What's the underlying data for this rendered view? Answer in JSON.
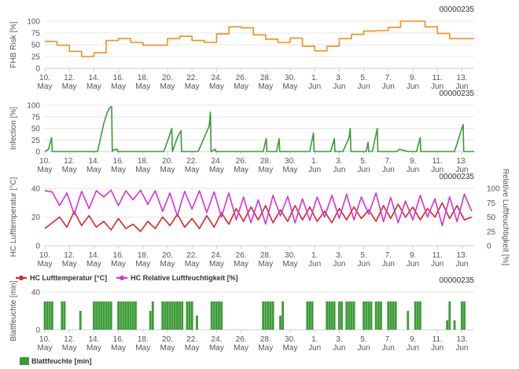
{
  "x_ticks": [
    "10. May",
    "12. May",
    "14. May",
    "16. May",
    "18. May",
    "20. May",
    "22. May",
    "24. May",
    "26. May",
    "28. May",
    "30. May",
    "1. Jun",
    "3. Jun",
    "5. Jun",
    "7. Jun",
    "9. Jun",
    "11. Jun",
    "13. Jun"
  ],
  "chart_data": [
    {
      "type": "line",
      "station_id": "00000235",
      "ylabel": "FHB Risk [%]",
      "ylim": [
        0,
        100
      ],
      "yticks": [
        "0",
        "25",
        "50",
        "75",
        "100"
      ],
      "color": "#f28f1c",
      "grid": true,
      "series": [
        {
          "x": [
            10,
            11,
            11,
            12,
            12,
            13,
            13,
            14,
            14,
            15,
            15,
            16,
            16,
            17,
            17,
            18,
            18,
            19,
            19,
            20,
            20,
            21,
            21,
            22,
            22,
            23,
            23,
            24,
            24,
            25,
            25,
            26,
            26,
            27,
            27,
            28,
            28,
            29,
            29,
            30,
            30,
            31,
            31,
            32,
            32,
            33,
            33,
            34,
            34,
            35,
            35,
            36,
            36,
            37,
            37,
            38,
            38,
            39,
            39,
            40,
            40,
            41,
            41,
            42,
            42,
            43,
            43,
            44,
            44,
            45
          ],
          "y": [
            57,
            57,
            49,
            49,
            36,
            36,
            25,
            25,
            33,
            33,
            59,
            59,
            63,
            63,
            55,
            55,
            49,
            49,
            49,
            49,
            63,
            63,
            68,
            68,
            59,
            59,
            55,
            55,
            73,
            73,
            88,
            88,
            86,
            86,
            71,
            71,
            62,
            62,
            55,
            55,
            64,
            64,
            47,
            47,
            37,
            37,
            47,
            47,
            63,
            63,
            72,
            72,
            79,
            79,
            80,
            80,
            87,
            87,
            100,
            100,
            100,
            100,
            88,
            88,
            74,
            74,
            63,
            63,
            63,
            63
          ]
        }
      ]
    },
    {
      "type": "line",
      "station_id": "00000235",
      "ylabel": "Infection [%]",
      "ylim": [
        0,
        100
      ],
      "yticks": [
        "0",
        "25",
        "50",
        "75",
        "100"
      ],
      "color": "#3a9b35",
      "grid": true,
      "series": [
        {
          "x": [
            10.0,
            10.3,
            10.55,
            10.6,
            14.3,
            14.8,
            15.1,
            15.3,
            15.45,
            15.5,
            15.55,
            15.9,
            15.95,
            19.7,
            20.1,
            20.35,
            20.4,
            20.8,
            21.1,
            21.15,
            22.5,
            23.4,
            23.5,
            23.55,
            23.9,
            23.95,
            27.8,
            28.05,
            28.1,
            28.9,
            29.1,
            29.15,
            31.6,
            31.9,
            31.95,
            33.3,
            33.6,
            33.65,
            34.3,
            34.8,
            34.9,
            34.95,
            36.2,
            36.35,
            36.4,
            36.7,
            37.1,
            37.15,
            38.7,
            38.9,
            39.6,
            40.3,
            40.6,
            40.65,
            43.4,
            44.0,
            44.1,
            44.15,
            45.0
          ],
          "y": [
            0,
            5,
            30,
            0,
            0,
            60,
            85,
            95,
            97,
            0,
            3,
            5,
            0,
            0,
            30,
            50,
            0,
            30,
            45,
            0,
            0,
            55,
            85,
            0,
            5,
            0,
            0,
            28,
            0,
            0,
            28,
            0,
            0,
            40,
            0,
            0,
            28,
            0,
            0,
            30,
            50,
            0,
            0,
            20,
            0,
            0,
            50,
            0,
            0,
            5,
            0,
            0,
            30,
            0,
            0,
            50,
            58,
            0,
            0
          ]
        }
      ]
    },
    {
      "type": "line",
      "station_id": "00000235",
      "ylabel": "HC Lufttemperatur [°C]",
      "ylabel_right": "Relative Luftfeuchtigkeit [%]",
      "ylim": [
        0,
        40
      ],
      "ylim_right": [
        0,
        100
      ],
      "yticks": [
        "0",
        "20",
        "40"
      ],
      "yticks_right": [
        "0",
        "25",
        "50",
        "75",
        "100"
      ],
      "grid": true,
      "legend_position": "bottom-left",
      "series": [
        {
          "name": "HC Lufttemperatur [°C]",
          "color": "#d62728",
          "axis": "left",
          "x": [
            10.0,
            10.6,
            11.2,
            11.8,
            12.4,
            13.0,
            13.6,
            14.2,
            14.8,
            15.4,
            16.0,
            16.6,
            17.2,
            17.8,
            18.4,
            19.0,
            19.6,
            20.2,
            20.8,
            21.4,
            22.0,
            22.6,
            23.2,
            23.8,
            24.4,
            25.0,
            25.6,
            26.2,
            26.8,
            27.4,
            28.0,
            28.6,
            29.2,
            29.8,
            30.4,
            31.0,
            31.6,
            32.2,
            32.8,
            33.4,
            34.0,
            34.6,
            35.2,
            35.8,
            36.4,
            37.0,
            37.6,
            38.2,
            38.8,
            39.4,
            40.0,
            40.6,
            41.2,
            41.8,
            42.4,
            43.0,
            43.6,
            44.2,
            44.8
          ],
          "y": [
            12,
            16,
            20,
            13,
            24,
            14,
            21,
            13,
            17,
            11,
            19,
            12,
            15,
            10,
            17,
            12,
            20,
            14,
            22,
            13,
            19,
            12,
            21,
            13,
            23,
            15,
            26,
            17,
            27,
            18,
            28,
            16,
            25,
            17,
            28,
            18,
            27,
            17,
            24,
            16,
            26,
            18,
            27,
            19,
            25,
            17,
            28,
            19,
            29,
            20,
            27,
            18,
            26,
            20,
            30,
            19,
            28,
            18,
            20
          ]
        },
        {
          "name": "HC Relative Luftfeuchtigkeit [%]",
          "color": "#d632d6",
          "axis": "right",
          "x": [
            10.0,
            10.6,
            11.2,
            11.8,
            12.4,
            13.0,
            13.6,
            14.2,
            14.8,
            15.4,
            16.0,
            16.6,
            17.2,
            17.8,
            18.4,
            19.0,
            19.6,
            20.2,
            20.8,
            21.4,
            22.0,
            22.6,
            23.2,
            23.8,
            24.4,
            25.0,
            25.6,
            26.2,
            26.8,
            27.4,
            28.0,
            28.6,
            29.2,
            29.8,
            30.4,
            31.0,
            31.6,
            32.2,
            32.8,
            33.4,
            34.0,
            34.6,
            35.2,
            35.8,
            36.4,
            37.0,
            37.6,
            38.2,
            38.8,
            39.4,
            40.0,
            40.6,
            41.2,
            41.8,
            42.4,
            43.0,
            43.6,
            44.2,
            44.8
          ],
          "y": [
            96,
            94,
            70,
            92,
            55,
            95,
            65,
            96,
            85,
            97,
            70,
            96,
            80,
            97,
            72,
            96,
            60,
            92,
            52,
            95,
            64,
            96,
            58,
            94,
            50,
            92,
            45,
            85,
            40,
            80,
            38,
            88,
            52,
            86,
            40,
            82,
            44,
            85,
            50,
            88,
            48,
            90,
            45,
            85,
            55,
            92,
            42,
            84,
            40,
            78,
            45,
            88,
            50,
            82,
            35,
            85,
            42,
            90,
            60
          ]
        }
      ]
    },
    {
      "type": "bar",
      "station_id": "00000235",
      "ylabel": "Blattfeuchte [min]",
      "ylim": [
        0,
        40
      ],
      "yticks": [
        "0",
        "40"
      ],
      "color": "#3a9b35",
      "grid": true,
      "legend_position": "bottom-left",
      "series": [
        {
          "name": "Blattfeuchte [min]",
          "x": [
            10.0,
            10.2,
            10.4,
            10.6,
            11.4,
            11.6,
            12.9,
            14.0,
            14.2,
            14.4,
            14.6,
            14.8,
            15.0,
            15.2,
            15.4,
            16.0,
            16.2,
            16.4,
            16.6,
            16.8,
            17.0,
            17.2,
            17.4,
            18.6,
            18.8,
            19.6,
            19.8,
            20.0,
            20.2,
            20.4,
            20.6,
            20.8,
            21.0,
            21.2,
            21.6,
            21.8,
            22.0,
            22.4,
            23.6,
            23.8,
            24.0,
            24.2,
            24.4,
            27.8,
            28.0,
            28.2,
            28.4,
            28.6,
            29.2,
            29.4,
            31.4,
            31.6,
            31.8,
            33.0,
            33.2,
            33.4,
            33.6,
            34.0,
            34.2,
            34.6,
            34.8,
            35.0,
            35.2,
            36.0,
            36.2,
            36.4,
            36.6,
            37.0,
            37.2,
            37.4,
            38.0,
            38.2,
            38.4,
            38.6,
            39.6,
            40.2,
            40.4,
            40.6,
            42.8,
            43.0,
            43.4,
            44.0,
            44.2
          ],
          "y": [
            30,
            30,
            30,
            30,
            30,
            30,
            20,
            30,
            30,
            30,
            30,
            30,
            30,
            30,
            30,
            30,
            30,
            30,
            30,
            30,
            30,
            30,
            30,
            20,
            30,
            30,
            30,
            30,
            30,
            30,
            30,
            30,
            30,
            30,
            30,
            30,
            30,
            15,
            30,
            30,
            30,
            30,
            30,
            30,
            30,
            30,
            30,
            30,
            15,
            30,
            30,
            30,
            30,
            30,
            30,
            30,
            30,
            30,
            30,
            30,
            30,
            30,
            30,
            30,
            30,
            30,
            30,
            30,
            30,
            30,
            30,
            30,
            30,
            30,
            20,
            30,
            30,
            30,
            10,
            30,
            10,
            30,
            30
          ]
        }
      ]
    }
  ]
}
